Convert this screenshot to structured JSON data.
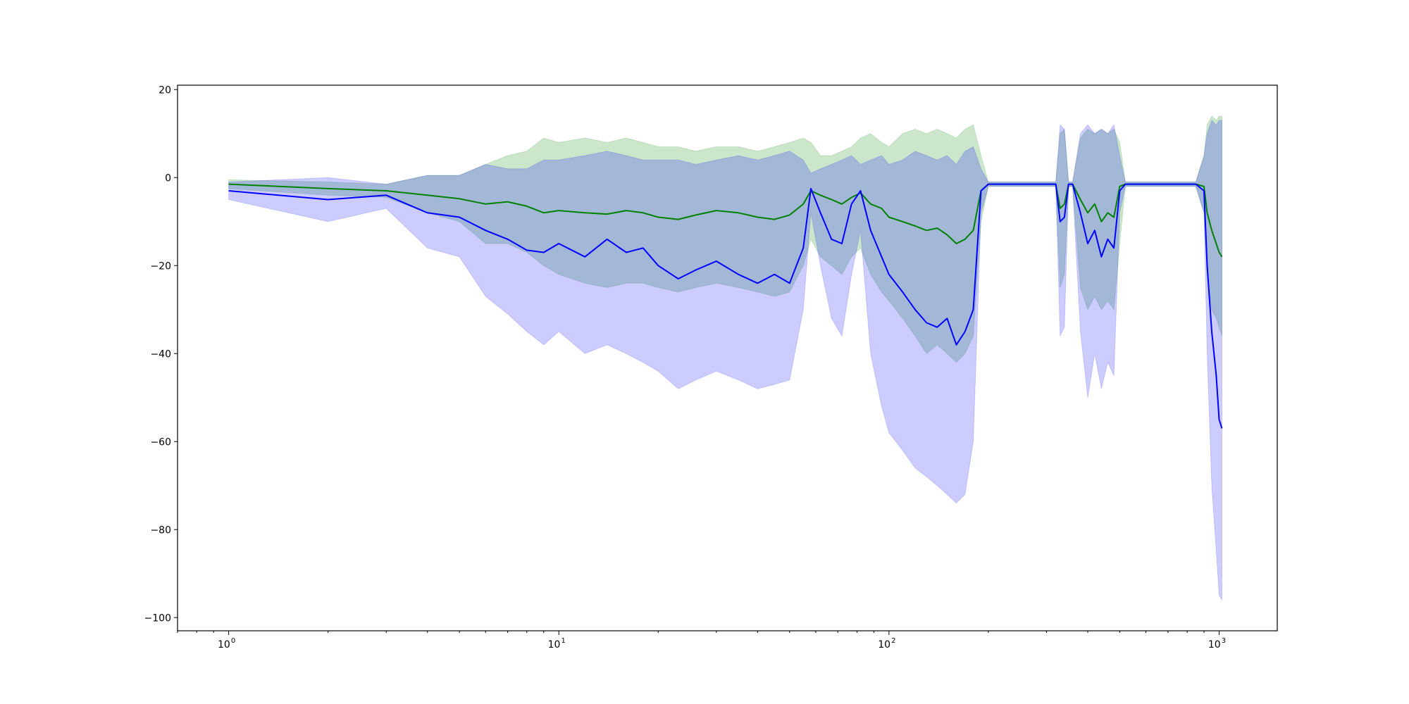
{
  "chart_data": {
    "type": "line",
    "title": "",
    "xlabel": "",
    "ylabel": "",
    "xscale": "log",
    "xlim": [
      0.7,
      1500
    ],
    "ylim": [
      -103,
      21
    ],
    "grid": false,
    "x_ticks": [
      {
        "base": "10",
        "exp": "0",
        "value": 1
      },
      {
        "base": "10",
        "exp": "1",
        "value": 10
      },
      {
        "base": "10",
        "exp": "2",
        "value": 100
      },
      {
        "base": "10",
        "exp": "3",
        "value": 1000
      }
    ],
    "y_ticks": [
      "20",
      "0",
      "−20",
      "−40",
      "−60",
      "−80",
      "−100"
    ],
    "y_tick_values": [
      20,
      0,
      -20,
      -40,
      -60,
      -80,
      -100
    ],
    "colors": {
      "series_a_line": "#008000",
      "series_a_band": "#008000",
      "series_b_line": "#0000ff",
      "series_b_band": "#0000ff"
    },
    "series": [
      {
        "color": "green",
        "x": [
          1,
          2,
          3,
          4,
          5,
          6,
          7,
          8,
          9,
          10,
          12,
          14,
          16,
          18,
          20,
          23,
          26,
          30,
          35,
          40,
          45,
          50,
          55,
          58,
          62,
          67,
          72,
          77,
          82,
          88,
          95,
          100,
          110,
          120,
          130,
          140,
          150,
          160,
          170,
          180,
          190,
          200,
          250,
          270,
          280,
          300,
          320,
          330,
          340,
          350,
          360,
          380,
          400,
          420,
          440,
          460,
          480,
          500,
          520,
          600,
          700,
          800,
          850,
          900,
          920,
          950,
          980,
          1000,
          1020
        ],
        "mean": [
          -1.5,
          -2.5,
          -3,
          -4,
          -4.8,
          -6,
          -5.5,
          -6.5,
          -8,
          -7.5,
          -8,
          -8.3,
          -7.5,
          -8,
          -9,
          -9.5,
          -8.5,
          -7.5,
          -8,
          -9,
          -9.5,
          -8.5,
          -6,
          -3,
          -4,
          -5,
          -6,
          -4.5,
          -3.5,
          -6,
          -7,
          -9,
          -10,
          -11,
          -12,
          -11.5,
          -13,
          -15,
          -14,
          -12,
          -3,
          -1.5,
          -1.5,
          -1.5,
          -1.5,
          -1.5,
          -1.5,
          -7,
          -6,
          -1.5,
          -1.5,
          -5,
          -8,
          -6,
          -10,
          -8,
          -9,
          -2,
          -1.5,
          -1.5,
          -1.5,
          -1.5,
          -1.5,
          -2,
          -8,
          -12,
          -15,
          -17,
          -18
        ],
        "upper": [
          -0.5,
          -1,
          -1.5,
          0.5,
          0.5,
          3,
          5,
          6,
          9,
          8,
          9,
          8,
          9,
          8,
          7,
          7,
          6,
          7,
          7,
          6,
          7,
          8,
          9,
          8,
          5,
          5,
          6,
          7,
          9,
          10,
          8,
          7,
          10,
          11,
          10,
          11,
          10,
          9,
          11,
          12,
          5,
          -1,
          -1,
          -1,
          -1,
          -1,
          -1,
          10,
          11,
          -1,
          -1,
          9,
          11,
          10,
          11,
          10,
          11,
          8,
          -1,
          -1,
          -1,
          -1,
          -1,
          5,
          12,
          14,
          13,
          14,
          14
        ],
        "lower": [
          -2.5,
          -4,
          -4.5,
          -8,
          -10,
          -15,
          -15,
          -17,
          -20,
          -22,
          -24,
          -25,
          -24,
          -24,
          -25,
          -26,
          -25,
          -24,
          -25,
          -26,
          -27,
          -26,
          -20,
          -14,
          -18,
          -20,
          -22,
          -18,
          -16,
          -22,
          -26,
          -28,
          -32,
          -36,
          -40,
          -38,
          -40,
          -42,
          -40,
          -36,
          -10,
          -2,
          -2,
          -2,
          -2,
          -2,
          -2,
          -25,
          -22,
          -2,
          -2,
          -25,
          -30,
          -27,
          -30,
          -28,
          -30,
          -15,
          -2,
          -2,
          -2,
          -2,
          -2,
          -8,
          -22,
          -30,
          -32,
          -34,
          -36
        ]
      },
      {
        "color": "blue",
        "x": [
          1,
          2,
          3,
          4,
          5,
          6,
          7,
          8,
          9,
          10,
          12,
          14,
          16,
          18,
          20,
          23,
          26,
          30,
          35,
          40,
          45,
          50,
          55,
          58,
          62,
          67,
          72,
          77,
          82,
          88,
          95,
          100,
          110,
          120,
          130,
          140,
          150,
          160,
          170,
          180,
          190,
          200,
          250,
          270,
          280,
          300,
          320,
          330,
          340,
          350,
          360,
          380,
          400,
          420,
          440,
          460,
          480,
          500,
          520,
          600,
          700,
          800,
          850,
          900,
          920,
          950,
          980,
          1000,
          1020
        ],
        "mean": [
          -3,
          -5,
          -4,
          -8,
          -9,
          -12,
          -14,
          -16.5,
          -17,
          -15,
          -18,
          -14,
          -17,
          -16,
          -20,
          -23,
          -21,
          -19,
          -22,
          -24,
          -22,
          -24,
          -16,
          -2.5,
          -8,
          -14,
          -15,
          -6,
          -3,
          -12,
          -18,
          -22,
          -26,
          -30,
          -33,
          -34,
          -32,
          -38,
          -35,
          -30,
          -3,
          -1.5,
          -1.5,
          -1.5,
          -1.5,
          -1.5,
          -1.5,
          -10,
          -9,
          -1.5,
          -1.5,
          -8,
          -15,
          -12,
          -18,
          -14,
          -16,
          -3,
          -1.5,
          -1.5,
          -1.5,
          -1.5,
          -1.5,
          -3,
          -20,
          -35,
          -45,
          -55,
          -57
        ],
        "upper": [
          -1,
          0,
          -1.5,
          0.5,
          0.5,
          3,
          2,
          2,
          4,
          4,
          5,
          6,
          5,
          4,
          4,
          4,
          3,
          4,
          5,
          4,
          5,
          6,
          4,
          1,
          2,
          3,
          4,
          5,
          3,
          4,
          5,
          3,
          4,
          6,
          5,
          4,
          5,
          3,
          6,
          7,
          2,
          -1,
          -1,
          -1,
          -1,
          -1,
          -1,
          12,
          11,
          -1,
          -1,
          10,
          12,
          10,
          11,
          10,
          12,
          5,
          -1,
          -1,
          -1,
          -1,
          -1,
          5,
          10,
          13,
          12,
          13,
          13
        ],
        "lower": [
          -5,
          -10,
          -7,
          -16,
          -18,
          -27,
          -31,
          -35,
          -38,
          -35,
          -40,
          -38,
          -40,
          -42,
          -44,
          -48,
          -46,
          -44,
          -46,
          -48,
          -47,
          -46,
          -30,
          -8,
          -20,
          -32,
          -36,
          -22,
          -12,
          -40,
          -52,
          -58,
          -62,
          -66,
          -68,
          -70,
          -72,
          -74,
          -72,
          -60,
          -8,
          -2,
          -2,
          -2,
          -2,
          -2,
          -2,
          -36,
          -34,
          -2,
          -2,
          -35,
          -50,
          -40,
          -48,
          -42,
          -45,
          -8,
          -2,
          -2,
          -2,
          -2,
          -2,
          -8,
          -40,
          -70,
          -85,
          -95,
          -96
        ]
      }
    ]
  }
}
